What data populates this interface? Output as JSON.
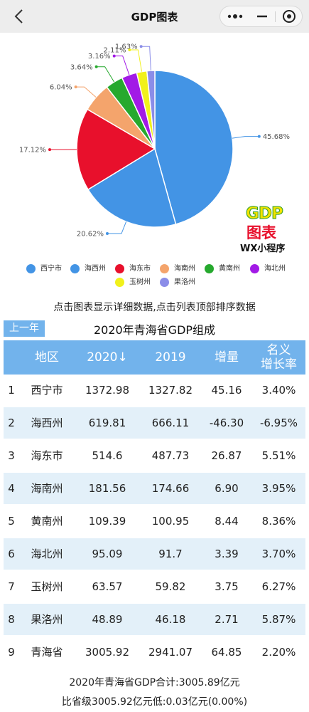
{
  "navbar": {
    "title": "GDP图表"
  },
  "chart_data": {
    "type": "pie",
    "title": "",
    "labels": [
      "西宁市",
      "海西州",
      "海东市",
      "海南州",
      "黄南州",
      "海北州",
      "玉树州",
      "果洛州"
    ],
    "values": [
      1372.98,
      619.81,
      514.6,
      181.56,
      109.39,
      95.09,
      63.57,
      48.89
    ],
    "percent_labels": [
      "45.68%",
      "20.62%",
      "17.12%",
      "6.04%",
      "3.64%",
      "3.16%",
      "2.11%",
      "1.63%"
    ],
    "colors": [
      "#4394e5",
      "#4394e5",
      "#e8102c",
      "#f4a46c",
      "#26a92e",
      "#a21ae6",
      "#f1f11b",
      "#8b8de8"
    ],
    "legend_position": "bottom"
  },
  "legend_colors": [
    "#4394e5",
    "#4394e5",
    "#e8102c",
    "#f4a46c",
    "#26a92e",
    "#a21ae6",
    "#f1f11b",
    "#8b8de8"
  ],
  "logo": {
    "gdp": "GDP",
    "zh": "图表",
    "wx": "WX小程序"
  },
  "hint": "点击图表显示详细数据,点击列表顶部排序数据",
  "prev_button": "上一年",
  "table": {
    "title": "2020年青海省GDP组成",
    "headers": {
      "region": "地区",
      "y2020": "2020↓",
      "y2019": "2019",
      "increase": "增量",
      "growth_line1": "名义",
      "growth_line2": "增长率"
    },
    "rows": [
      {
        "idx": "1",
        "region": "西宁市",
        "y2020": "1372.98",
        "y2019": "1327.82",
        "inc": "45.16",
        "rate": "3.40%"
      },
      {
        "idx": "2",
        "region": "海西州",
        "y2020": "619.81",
        "y2019": "666.11",
        "inc": "-46.30",
        "rate": "-6.95%"
      },
      {
        "idx": "3",
        "region": "海东市",
        "y2020": "514.6",
        "y2019": "487.73",
        "inc": "26.87",
        "rate": "5.51%"
      },
      {
        "idx": "4",
        "region": "海南州",
        "y2020": "181.56",
        "y2019": "174.66",
        "inc": "6.90",
        "rate": "3.95%"
      },
      {
        "idx": "5",
        "region": "黄南州",
        "y2020": "109.39",
        "y2019": "100.95",
        "inc": "8.44",
        "rate": "8.36%"
      },
      {
        "idx": "6",
        "region": "海北州",
        "y2020": "95.09",
        "y2019": "91.7",
        "inc": "3.39",
        "rate": "3.70%"
      },
      {
        "idx": "7",
        "region": "玉树州",
        "y2020": "63.57",
        "y2019": "59.82",
        "inc": "3.75",
        "rate": "6.27%"
      },
      {
        "idx": "8",
        "region": "果洛州",
        "y2020": "48.89",
        "y2019": "46.18",
        "inc": "2.71",
        "rate": "5.87%"
      },
      {
        "idx": "9",
        "region": "青海省",
        "y2020": "3005.92",
        "y2019": "2941.07",
        "inc": "64.85",
        "rate": "2.20%"
      }
    ]
  },
  "summary": {
    "line1": "2020年青海省GDP合计:3005.89亿元",
    "line2": "比省级3005.92亿元低:0.03亿元(0.00%)"
  }
}
